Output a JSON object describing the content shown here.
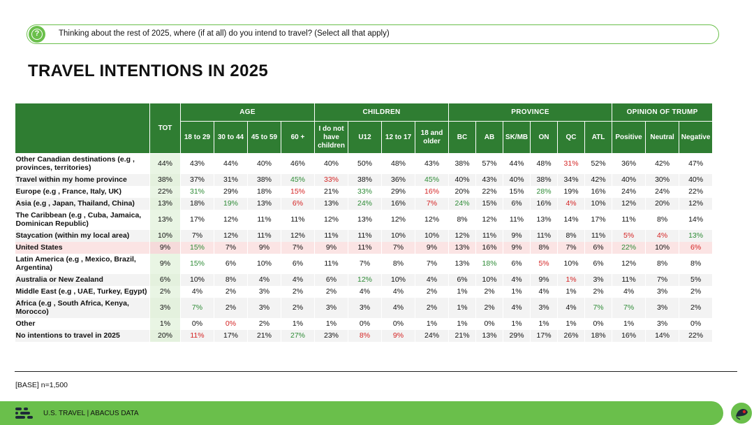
{
  "question": {
    "icon": "question-mark-icon",
    "text": "Thinking about the rest of 2025, where (if at all) do you intend to travel? (Select all that apply)"
  },
  "title": "TRAVEL INTENTIONS IN 2025",
  "table": {
    "tot_label": "TOT",
    "groups": [
      {
        "label": "AGE",
        "subs": [
          "18 to 29",
          "30 to 44",
          "45 to 59",
          "60 +"
        ]
      },
      {
        "label": "CHILDREN",
        "subs": [
          "I do not have children",
          "U12",
          "12 to 17",
          "18 and older"
        ]
      },
      {
        "label": "PROVINCE",
        "subs": [
          "BC",
          "AB",
          "SK/MB",
          "ON",
          "QC",
          "ATL"
        ]
      },
      {
        "label": "OPINION OF TRUMP",
        "subs": [
          "Positive",
          "Neutral",
          "Negative"
        ]
      }
    ],
    "rows": [
      {
        "label": "Other Canadian destinations (e.g , provinces, territories)",
        "tot": "44%",
        "values": [
          "43%",
          "44%",
          "40%",
          "46%",
          "40%",
          "50%",
          "48%",
          "43%",
          "38%",
          "57%",
          "44%",
          "48%",
          "31%",
          "52%",
          "36%",
          "42%",
          "47%"
        ],
        "flags": [
          "",
          "",
          "",
          "",
          "",
          "",
          "",
          "",
          "",
          "",
          "",
          "",
          "lo",
          "",
          "",
          "",
          ""
        ]
      },
      {
        "label": "Travel within my home province",
        "tot": "38%",
        "values": [
          "37%",
          "31%",
          "38%",
          "45%",
          "33%",
          "38%",
          "36%",
          "45%",
          "40%",
          "43%",
          "40%",
          "38%",
          "34%",
          "42%",
          "40%",
          "30%",
          "40%"
        ],
        "flags": [
          "",
          "",
          "",
          "hi",
          "lo",
          "",
          "",
          "hi",
          "",
          "",
          "",
          "",
          "",
          "",
          "",
          "",
          ""
        ]
      },
      {
        "label": "Europe (e.g , France, Italy, UK)",
        "tot": "22%",
        "values": [
          "31%",
          "29%",
          "18%",
          "15%",
          "21%",
          "33%",
          "29%",
          "16%",
          "20%",
          "22%",
          "15%",
          "28%",
          "19%",
          "16%",
          "24%",
          "24%",
          "22%"
        ],
        "flags": [
          "hi",
          "",
          "",
          "lo",
          "",
          "hi",
          "",
          "lo",
          "",
          "",
          "",
          "hi",
          "",
          "",
          "",
          "",
          ""
        ]
      },
      {
        "label": "Asia (e.g , Japan, Thailand, China)",
        "tot": "13%",
        "values": [
          "18%",
          "19%",
          "13%",
          "6%",
          "13%",
          "24%",
          "16%",
          "7%",
          "24%",
          "15%",
          "6%",
          "16%",
          "4%",
          "10%",
          "12%",
          "20%",
          "12%"
        ],
        "flags": [
          "",
          "hi",
          "",
          "lo",
          "",
          "hi",
          "",
          "lo",
          "hi",
          "",
          "",
          "",
          "lo",
          "",
          "",
          "",
          ""
        ]
      },
      {
        "label": "The Caribbean (e.g , Cuba, Jamaica, Dominican Republic)",
        "tot": "13%",
        "values": [
          "17%",
          "12%",
          "11%",
          "11%",
          "12%",
          "13%",
          "12%",
          "12%",
          "8%",
          "12%",
          "11%",
          "13%",
          "14%",
          "17%",
          "11%",
          "8%",
          "14%"
        ],
        "flags": [
          "",
          "",
          "",
          "",
          "",
          "",
          "",
          "",
          "",
          "",
          "",
          "",
          "",
          "",
          "",
          "",
          ""
        ]
      },
      {
        "label": "Staycation (within my local area)",
        "tot": "10%",
        "values": [
          "7%",
          "12%",
          "11%",
          "12%",
          "11%",
          "11%",
          "10%",
          "10%",
          "12%",
          "11%",
          "9%",
          "11%",
          "8%",
          "11%",
          "5%",
          "4%",
          "13%"
        ],
        "flags": [
          "",
          "",
          "",
          "",
          "",
          "",
          "",
          "",
          "",
          "",
          "",
          "",
          "",
          "",
          "lo",
          "lo",
          "hi"
        ]
      },
      {
        "label": "United States",
        "tot": "9%",
        "values": [
          "15%",
          "7%",
          "9%",
          "7%",
          "9%",
          "11%",
          "7%",
          "9%",
          "13%",
          "16%",
          "9%",
          "8%",
          "7%",
          "6%",
          "22%",
          "10%",
          "6%"
        ],
        "flags": [
          "hi",
          "",
          "",
          "",
          "",
          "",
          "",
          "",
          "",
          "",
          "",
          "",
          "",
          "",
          "hi",
          "",
          "lo"
        ]
      },
      {
        "label": "Latin America (e.g , Mexico, Brazil, Argentina)",
        "tot": "9%",
        "values": [
          "15%",
          "6%",
          "10%",
          "6%",
          "11%",
          "7%",
          "8%",
          "7%",
          "13%",
          "18%",
          "6%",
          "5%",
          "10%",
          "6%",
          "12%",
          "8%",
          "8%"
        ],
        "flags": [
          "hi",
          "",
          "",
          "",
          "",
          "",
          "",
          "",
          "",
          "hi",
          "",
          "lo",
          "",
          "",
          "",
          "",
          ""
        ]
      },
      {
        "label": "Australia or New Zealand",
        "tot": "6%",
        "values": [
          "10%",
          "8%",
          "4%",
          "4%",
          "6%",
          "12%",
          "10%",
          "4%",
          "6%",
          "10%",
          "4%",
          "9%",
          "1%",
          "3%",
          "11%",
          "7%",
          "5%"
        ],
        "flags": [
          "",
          "",
          "",
          "",
          "",
          "hi",
          "",
          "",
          "",
          "",
          "",
          "",
          "lo",
          "",
          "",
          "",
          ""
        ]
      },
      {
        "label": "Middle East (e.g , UAE, Turkey, Egypt)",
        "tot": "2%",
        "values": [
          "4%",
          "2%",
          "3%",
          "2%",
          "2%",
          "4%",
          "4%",
          "2%",
          "1%",
          "2%",
          "1%",
          "4%",
          "1%",
          "2%",
          "4%",
          "3%",
          "2%"
        ],
        "flags": [
          "",
          "",
          "",
          "",
          "",
          "",
          "",
          "",
          "",
          "",
          "",
          "",
          "",
          "",
          "",
          "",
          ""
        ]
      },
      {
        "label": "Africa (e.g , South Africa, Kenya, Morocco)",
        "tot": "3%",
        "values": [
          "7%",
          "2%",
          "3%",
          "2%",
          "3%",
          "3%",
          "4%",
          "2%",
          "1%",
          "2%",
          "4%",
          "3%",
          "4%",
          "7%",
          "7%",
          "3%",
          "2%"
        ],
        "flags": [
          "hi",
          "",
          "",
          "",
          "",
          "",
          "",
          "",
          "",
          "",
          "",
          "",
          "",
          "hi",
          "hi",
          "",
          ""
        ]
      },
      {
        "label": "Other",
        "tot": "1%",
        "values": [
          "0%",
          "0%",
          "2%",
          "1%",
          "1%",
          "0%",
          "0%",
          "1%",
          "1%",
          "0%",
          "1%",
          "1%",
          "1%",
          "0%",
          "1%",
          "3%",
          "0%"
        ],
        "flags": [
          "",
          "lo",
          "",
          "",
          "",
          "",
          "",
          "",
          "",
          "",
          "",
          "",
          "",
          "",
          "",
          "",
          ""
        ]
      },
      {
        "label": "No intentions to travel in 2025",
        "tot": "20%",
        "values": [
          "11%",
          "17%",
          "21%",
          "27%",
          "23%",
          "8%",
          "9%",
          "24%",
          "21%",
          "13%",
          "29%",
          "17%",
          "26%",
          "18%",
          "16%",
          "14%",
          "22%"
        ],
        "flags": [
          "lo",
          "",
          "",
          "hi",
          "",
          "lo",
          "lo",
          "",
          "",
          "",
          "",
          "",
          "",
          "",
          "",
          "",
          ""
        ]
      }
    ]
  },
  "chart_data": {
    "type": "table",
    "title": "TRAVEL INTENTIONS IN 2025",
    "columns": [
      "TOT",
      "18 to 29",
      "30 to 44",
      "45 to 59",
      "60 +",
      "I do not have children",
      "U12",
      "12 to 17",
      "18 and older",
      "BC",
      "AB",
      "SK/MB",
      "ON",
      "QC",
      "ATL",
      "Positive",
      "Neutral",
      "Negative"
    ],
    "rows": [
      "Other Canadian destinations (e.g , provinces, territories)",
      "Travel within my home province",
      "Europe (e.g , France, Italy, UK)",
      "Asia (e.g , Japan, Thailand, China)",
      "The Caribbean (e.g , Cuba, Jamaica, Dominican Republic)",
      "Staycation (within my local area)",
      "United States",
      "Latin America (e.g , Mexico, Brazil, Argentina)",
      "Australia or New Zealand",
      "Middle East (e.g , UAE, Turkey, Egypt)",
      "Africa (e.g , South Africa, Kenya, Morocco)",
      "Other",
      "No intentions to travel in 2025"
    ],
    "colors": {
      "header": "#2f7d32",
      "higher": "#2e8b36",
      "lower": "#d42424",
      "accent": "#6abf4b"
    }
  },
  "base_note": "[BASE] n=1,500",
  "footer": {
    "logo": "abacus-logo-icon",
    "text": "U.S. TRAVEL  |  ABACUS DATA"
  },
  "corner_badge": "abacus-badge-icon"
}
